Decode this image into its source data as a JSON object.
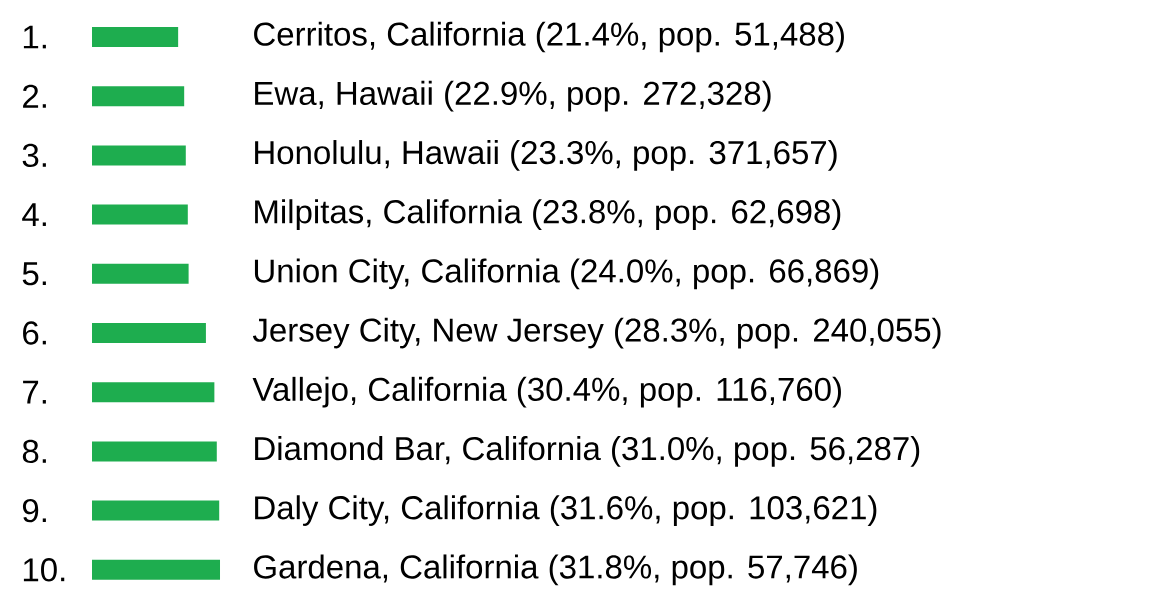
{
  "chart_data": {
    "type": "bar",
    "orientation": "horizontal",
    "color": "#1ead4f",
    "categories": [
      "1.",
      "2.",
      "3.",
      "4.",
      "5.",
      "6.",
      "7.",
      "8.",
      "9.",
      "10."
    ],
    "values": [
      21.4,
      22.9,
      23.3,
      23.8,
      24.0,
      28.3,
      30.4,
      31.0,
      31.6,
      31.8
    ],
    "value_labels": [
      "Cerritos, California (21.4%, pop. 51,488)",
      "Ewa, Hawaii (22.9%, pop. 272,328)",
      "Honolulu, Hawaii (23.3%, pop. 371,657)",
      "Milpitas, California (23.8%, pop. 62,698)",
      "Union City, California (24.0%, pop. 66,869)",
      "Jersey City, New Jersey (28.3%, pop. 240,055)",
      "Vallejo, California (30.4%, pop. 116,760)",
      "Diamond Bar, California (31.0%, pop. 56,287)",
      "Daly City, California (31.6%, pop. 103,621)",
      "Gardena, California (31.8%, pop. 57,746)"
    ]
  }
}
